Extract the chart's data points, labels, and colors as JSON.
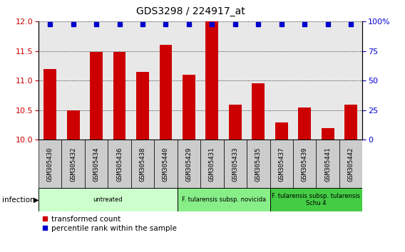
{
  "title": "GDS3298 / 224917_at",
  "categories": [
    "GSM305430",
    "GSM305432",
    "GSM305434",
    "GSM305436",
    "GSM305438",
    "GSM305440",
    "GSM305429",
    "GSM305431",
    "GSM305433",
    "GSM305435",
    "GSM305437",
    "GSM305439",
    "GSM305441",
    "GSM305442"
  ],
  "bar_values": [
    11.2,
    10.5,
    11.48,
    11.48,
    11.15,
    11.6,
    11.1,
    12.0,
    10.6,
    10.95,
    10.3,
    10.55,
    10.2,
    10.6
  ],
  "bar_color": "#cc0000",
  "dot_color": "#0000cc",
  "ylim_left": [
    10,
    12
  ],
  "ylim_right": [
    0,
    100
  ],
  "yticks_left": [
    10,
    10.5,
    11,
    11.5,
    12
  ],
  "yticks_right": [
    0,
    25,
    50,
    75,
    100
  ],
  "groups": [
    {
      "label": "untreated",
      "start": 0,
      "end": 6,
      "color": "#ccffcc"
    },
    {
      "label": "F. tularensis subsp. novicida",
      "start": 6,
      "end": 10,
      "color": "#88ee88"
    },
    {
      "label": "F. tularensis subsp. tularensis\nSchu 4",
      "start": 10,
      "end": 14,
      "color": "#44cc44"
    }
  ],
  "infection_label": "infection",
  "legend_bar_label": "transformed count",
  "legend_dot_label": "percentile rank within the sample",
  "plot_bg_color": "#e8e8e8",
  "tick_bg_color": "#cccccc",
  "right_yticklabels": [
    "0",
    "25",
    "50",
    "75",
    "100%"
  ]
}
